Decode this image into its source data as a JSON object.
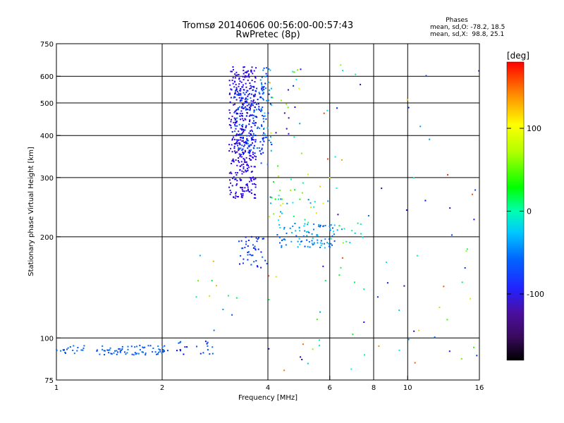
{
  "chart_data": {
    "type": "scatter",
    "title": "Tromsø 20140606 00:56:00-00:57:43",
    "subtitle": "RwPretec (8p)",
    "xlabel": "Frequency [MHz]",
    "ylabel": "Stationary phase Virtual Height [km]",
    "x_scale": "log",
    "y_scale": "log",
    "xlim": [
      1,
      16
    ],
    "ylim": [
      75,
      750
    ],
    "x_ticks": [
      1,
      2,
      4,
      6,
      8,
      10,
      16
    ],
    "y_ticks": [
      75,
      100,
      200,
      300,
      400,
      500,
      600,
      750
    ],
    "x_grid": [
      2,
      4,
      6,
      8,
      10
    ],
    "y_grid": [
      100,
      200,
      300,
      400,
      500,
      600
    ],
    "grid": true,
    "legend": {
      "heading": "Phases",
      "line1": "mean, sd,O: -78.2, 18.5",
      "line2": "mean, sd,X:  98.8, 25.1",
      "placement": "top-right"
    },
    "colorbar": {
      "label": "[deg]",
      "range": [
        -180,
        180
      ],
      "ticks": [
        100,
        0,
        -100
      ],
      "placement": "right"
    },
    "clusters": [
      {
        "x": [
          1.0,
          1.2
        ],
        "y": [
          90,
          95
        ],
        "n": 20,
        "phase": [
          -70,
          -55
        ]
      },
      {
        "x": [
          1.3,
          2.1
        ],
        "y": [
          89,
          95
        ],
        "n": 70,
        "phase": [
          -75,
          -55
        ]
      },
      {
        "x": [
          2.2,
          2.8
        ],
        "y": [
          89,
          98
        ],
        "n": 20,
        "phase": [
          -95,
          -60
        ]
      },
      {
        "x": [
          3.1,
          3.7
        ],
        "y": [
          260,
          640
        ],
        "n": 380,
        "phase": [
          -150,
          -95
        ]
      },
      {
        "x": [
          3.2,
          3.9
        ],
        "y": [
          350,
          560
        ],
        "n": 180,
        "phase": [
          -95,
          -55
        ]
      },
      {
        "x": [
          3.8,
          4.1
        ],
        "y": [
          320,
          640
        ],
        "n": 50,
        "phase": [
          -85,
          -30
        ]
      },
      {
        "x": [
          3.3,
          4.0
        ],
        "y": [
          160,
          200
        ],
        "n": 45,
        "phase": [
          -90,
          -60
        ]
      },
      {
        "x": [
          4.2,
          6.2
        ],
        "y": [
          185,
          220
        ],
        "n": 90,
        "phase": [
          -75,
          -30
        ]
      },
      {
        "x": [
          4.0,
          6.0
        ],
        "y": [
          220,
          310
        ],
        "n": 40,
        "phase": [
          -60,
          130
        ]
      },
      {
        "x": [
          4.0,
          5.0
        ],
        "y": [
          380,
          620
        ],
        "n": 15,
        "phase": [
          -170,
          160
        ]
      },
      {
        "x": [
          2.5,
          3.4
        ],
        "y": [
          105,
          185
        ],
        "n": 12,
        "phase": [
          -80,
          140
        ]
      },
      {
        "x": [
          6.0,
          7.5
        ],
        "y": [
          190,
          220
        ],
        "n": 15,
        "phase": [
          -60,
          30
        ]
      },
      {
        "x": [
          4.0,
          16.0
        ],
        "y": [
          80,
          650
        ],
        "n": 90,
        "phase": [
          -170,
          170
        ]
      }
    ]
  }
}
